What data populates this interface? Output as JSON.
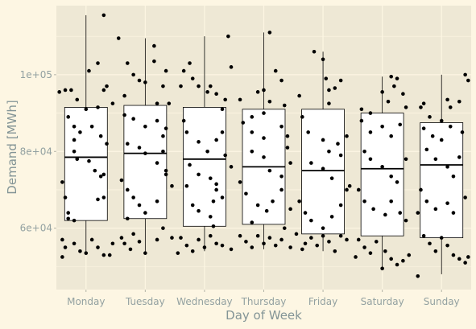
{
  "chart_data": {
    "type": "boxplot",
    "xlabel": "Day of Week",
    "ylabel": "Demand [MWh]",
    "ylim": [
      44000,
      118000
    ],
    "y_ticks": [
      60000,
      80000,
      100000
    ],
    "y_tick_labels": [
      "6e+04",
      "8e+04",
      "1e+05"
    ],
    "grid": true,
    "colors": {
      "background": "#fdf6e3",
      "panel": "#eee8d5",
      "grid": "#fdf6e3",
      "box_fill": "#ffffff",
      "box_stroke": "#000000",
      "point": "#000000",
      "tick_text": "#93a1a1",
      "title_text": "#839496"
    },
    "categories": [
      "Monday",
      "Tuesday",
      "Wednesday",
      "Thursday",
      "Friday",
      "Saturday",
      "Sunday"
    ],
    "boxes": [
      {
        "q1": 62000,
        "median": 78500,
        "q3": 91500,
        "whisker_low": 53000,
        "whisker_high": 115500
      },
      {
        "q1": 62500,
        "median": 79500,
        "q3": 92000,
        "whisker_low": 53500,
        "whisker_high": 109500
      },
      {
        "q1": 60500,
        "median": 78000,
        "q3": 91500,
        "whisker_low": 54000,
        "whisker_high": 110000
      },
      {
        "q1": 61000,
        "median": 76000,
        "q3": 91000,
        "whisker_low": 54500,
        "whisker_high": 111000
      },
      {
        "q1": 58500,
        "median": 75000,
        "q3": 91000,
        "whisker_low": 54000,
        "whisker_high": 106000
      },
      {
        "q1": 58000,
        "median": 75500,
        "q3": 90000,
        "whisker_low": 49500,
        "whisker_high": 99500
      },
      {
        "q1": 57500,
        "median": 76500,
        "q3": 87500,
        "whisker_low": 48000,
        "whisker_high": 100000
      }
    ],
    "points": [
      [
        [
          -0.45,
          95500
        ],
        [
          -0.35,
          96000
        ],
        [
          -0.25,
          96000
        ],
        [
          -0.15,
          93500
        ],
        [
          0.05,
          101000
        ],
        [
          0.2,
          103000
        ],
        [
          0.35,
          97000
        ],
        [
          0.3,
          96000
        ],
        [
          0.45,
          92500
        ],
        [
          0.3,
          115500
        ],
        [
          0.0,
          91000
        ],
        [
          0.2,
          91500
        ],
        [
          -0.3,
          89000
        ],
        [
          -0.2,
          86500
        ],
        [
          -0.1,
          85000
        ],
        [
          -0.2,
          83000
        ],
        [
          0.1,
          86500
        ],
        [
          0.25,
          84000
        ],
        [
          -0.2,
          80000
        ],
        [
          -0.15,
          78000
        ],
        [
          0.05,
          77500
        ],
        [
          0.15,
          75000
        ],
        [
          0.3,
          74000
        ],
        [
          0.35,
          82000
        ],
        [
          -0.4,
          72000
        ],
        [
          -0.35,
          68000
        ],
        [
          -0.3,
          64000
        ],
        [
          -0.3,
          62500
        ],
        [
          -0.2,
          62000
        ],
        [
          0.2,
          67500
        ],
        [
          0.3,
          68000
        ],
        [
          0.25,
          73500
        ],
        [
          -0.4,
          57000
        ],
        [
          -0.35,
          55000
        ],
        [
          -0.2,
          56000
        ],
        [
          -0.1,
          54000
        ],
        [
          0.0,
          53500
        ],
        [
          0.1,
          57000
        ],
        [
          0.2,
          55000
        ],
        [
          0.3,
          53000
        ],
        [
          0.45,
          56000
        ],
        [
          -0.4,
          52500
        ],
        [
          0.4,
          53000
        ]
      ],
      [
        [
          -0.45,
          109500
        ],
        [
          -0.3,
          103000
        ],
        [
          -0.2,
          100000
        ],
        [
          -0.1,
          98500
        ],
        [
          0.0,
          98000
        ],
        [
          0.15,
          103500
        ],
        [
          0.35,
          101000
        ],
        [
          0.3,
          97000
        ],
        [
          0.4,
          92500
        ],
        [
          0.2,
          92500
        ],
        [
          -0.35,
          94500
        ],
        [
          0.15,
          107500
        ],
        [
          -0.35,
          89500
        ],
        [
          -0.2,
          88500
        ],
        [
          0.0,
          86500
        ],
        [
          0.2,
          88000
        ],
        [
          0.3,
          84000
        ],
        [
          0.35,
          86000
        ],
        [
          -0.3,
          82000
        ],
        [
          -0.1,
          81000
        ],
        [
          0.0,
          79500
        ],
        [
          0.2,
          77000
        ],
        [
          0.35,
          75000
        ],
        [
          0.3,
          80000
        ],
        [
          -0.4,
          72500
        ],
        [
          -0.3,
          70000
        ],
        [
          -0.2,
          68000
        ],
        [
          -0.1,
          66000
        ],
        [
          0.0,
          64000
        ],
        [
          0.2,
          67000
        ],
        [
          0.45,
          71000
        ],
        [
          0.35,
          74000
        ],
        [
          -0.4,
          57500
        ],
        [
          -0.35,
          56000
        ],
        [
          -0.25,
          54500
        ],
        [
          -0.2,
          58500
        ],
        [
          -0.1,
          56500
        ],
        [
          0.0,
          53500
        ],
        [
          0.2,
          57000
        ],
        [
          0.3,
          60000
        ],
        [
          0.45,
          57500
        ],
        [
          -0.3,
          62500
        ]
      ],
      [
        [
          -0.35,
          101000
        ],
        [
          -0.25,
          103000
        ],
        [
          -0.2,
          99000
        ],
        [
          -0.1,
          97000
        ],
        [
          0.05,
          95500
        ],
        [
          0.2,
          95000
        ],
        [
          0.35,
          93500
        ],
        [
          0.4,
          110000
        ],
        [
          0.3,
          91000
        ],
        [
          -0.4,
          97000
        ],
        [
          0.1,
          97000
        ],
        [
          0.45,
          102000
        ],
        [
          -0.35,
          88000
        ],
        [
          -0.3,
          85000
        ],
        [
          -0.1,
          82500
        ],
        [
          0.05,
          80000
        ],
        [
          0.2,
          83000
        ],
        [
          0.3,
          85000
        ],
        [
          0.35,
          79000
        ],
        [
          -0.25,
          76500
        ],
        [
          -0.1,
          74000
        ],
        [
          0.1,
          73000
        ],
        [
          0.2,
          71500
        ],
        [
          0.45,
          76000
        ],
        [
          -0.3,
          71000
        ],
        [
          -0.2,
          66000
        ],
        [
          -0.1,
          64500
        ],
        [
          0.1,
          63000
        ],
        [
          0.15,
          67000
        ],
        [
          0.3,
          68000
        ],
        [
          0.2,
          70000
        ],
        [
          -0.4,
          57500
        ],
        [
          -0.3,
          55500
        ],
        [
          -0.2,
          54000
        ],
        [
          -0.1,
          57000
        ],
        [
          0.0,
          55000
        ],
        [
          0.1,
          58000
        ],
        [
          0.2,
          56000
        ],
        [
          0.3,
          55500
        ],
        [
          0.45,
          54500
        ],
        [
          -0.45,
          53500
        ],
        [
          0.15,
          60500
        ]
      ],
      [
        [
          -0.4,
          93500
        ],
        [
          -0.1,
          95500
        ],
        [
          0.0,
          96000
        ],
        [
          0.1,
          93000
        ],
        [
          0.2,
          101000
        ],
        [
          0.3,
          98500
        ],
        [
          0.35,
          92000
        ],
        [
          0.1,
          111000
        ],
        [
          -0.2,
          89000
        ],
        [
          0.0,
          90000
        ],
        [
          -0.35,
          87500
        ],
        [
          -0.2,
          85000
        ],
        [
          0.0,
          83500
        ],
        [
          0.3,
          86500
        ],
        [
          0.4,
          84000
        ],
        [
          -0.2,
          80000
        ],
        [
          0.0,
          78500
        ],
        [
          0.1,
          75000
        ],
        [
          0.3,
          73500
        ],
        [
          0.45,
          77000
        ],
        [
          0.4,
          81000
        ],
        [
          -0.4,
          72000
        ],
        [
          -0.3,
          69000
        ],
        [
          -0.1,
          66000
        ],
        [
          0.05,
          64500
        ],
        [
          0.15,
          67000
        ],
        [
          0.3,
          70000
        ],
        [
          0.45,
          65000
        ],
        [
          -0.4,
          58000
        ],
        [
          -0.3,
          56500
        ],
        [
          -0.2,
          55000
        ],
        [
          -0.1,
          58000
        ],
        [
          0.0,
          56000
        ],
        [
          0.1,
          57500
        ],
        [
          0.2,
          55500
        ],
        [
          0.3,
          57000
        ],
        [
          0.45,
          55000
        ],
        [
          0.35,
          60000
        ],
        [
          -0.2,
          61500
        ]
      ],
      [
        [
          -0.4,
          94500
        ],
        [
          -0.15,
          106000
        ],
        [
          0.0,
          104000
        ],
        [
          0.05,
          99000
        ],
        [
          0.1,
          96000
        ],
        [
          0.2,
          96500
        ],
        [
          0.3,
          98500
        ],
        [
          0.1,
          92500
        ],
        [
          -0.35,
          89000
        ],
        [
          -0.25,
          85000
        ],
        [
          0.0,
          83000
        ],
        [
          0.1,
          80000
        ],
        [
          0.25,
          82000
        ],
        [
          0.4,
          84000
        ],
        [
          -0.2,
          77000
        ],
        [
          0.0,
          75500
        ],
        [
          0.15,
          73000
        ],
        [
          0.45,
          71000
        ],
        [
          0.3,
          79000
        ],
        [
          -0.4,
          67000
        ],
        [
          -0.3,
          64000
        ],
        [
          -0.2,
          62000
        ],
        [
          0.0,
          60000
        ],
        [
          0.15,
          63000
        ],
        [
          0.3,
          66000
        ],
        [
          0.4,
          70000
        ],
        [
          -0.45,
          58500
        ],
        [
          -0.3,
          56000
        ],
        [
          -0.2,
          57500
        ],
        [
          -0.1,
          55500
        ],
        [
          0.0,
          58000
        ],
        [
          0.1,
          56500
        ],
        [
          0.2,
          54000
        ],
        [
          0.3,
          58000
        ],
        [
          0.4,
          57000
        ],
        [
          -0.35,
          54500
        ]
      ],
      [
        [
          -0.35,
          91000
        ],
        [
          -0.2,
          90000
        ],
        [
          0.0,
          95500
        ],
        [
          0.1,
          93000
        ],
        [
          0.2,
          97000
        ],
        [
          0.25,
          99000
        ],
        [
          0.35,
          95000
        ],
        [
          0.4,
          91500
        ],
        [
          0.15,
          99500
        ],
        [
          -0.35,
          88000
        ],
        [
          -0.2,
          85000
        ],
        [
          0.0,
          86500
        ],
        [
          0.15,
          84000
        ],
        [
          0.3,
          87000
        ],
        [
          -0.3,
          80000
        ],
        [
          -0.2,
          78000
        ],
        [
          0.0,
          76000
        ],
        [
          0.15,
          73500
        ],
        [
          0.25,
          72000
        ],
        [
          0.4,
          78000
        ],
        [
          -0.4,
          70000
        ],
        [
          -0.3,
          67000
        ],
        [
          -0.15,
          65000
        ],
        [
          0.05,
          63500
        ],
        [
          0.15,
          67000
        ],
        [
          0.3,
          64000
        ],
        [
          0.4,
          62000
        ],
        [
          -0.4,
          57000
        ],
        [
          -0.3,
          55000
        ],
        [
          -0.2,
          53500
        ],
        [
          -0.1,
          56500
        ],
        [
          0.05,
          54000
        ],
        [
          0.15,
          52000
        ],
        [
          0.25,
          50500
        ],
        [
          0.35,
          51500
        ],
        [
          0.45,
          53000
        ],
        [
          -0.45,
          52500
        ],
        [
          0.0,
          49500
        ]
      ],
      [
        [
          -0.35,
          91500
        ],
        [
          -0.2,
          89000
        ],
        [
          0.0,
          88000
        ],
        [
          0.15,
          91500
        ],
        [
          0.3,
          93000
        ],
        [
          0.4,
          100000
        ],
        [
          0.45,
          98500
        ],
        [
          0.1,
          93500
        ],
        [
          -0.3,
          92500
        ],
        [
          -0.3,
          86000
        ],
        [
          -0.15,
          84000
        ],
        [
          0.0,
          83000
        ],
        [
          0.15,
          86500
        ],
        [
          0.35,
          85000
        ],
        [
          -0.25,
          80500
        ],
        [
          -0.1,
          78000
        ],
        [
          0.1,
          76000
        ],
        [
          0.2,
          73500
        ],
        [
          0.3,
          78500
        ],
        [
          -0.35,
          70000
        ],
        [
          -0.25,
          67000
        ],
        [
          -0.1,
          65000
        ],
        [
          0.1,
          66500
        ],
        [
          0.2,
          64000
        ],
        [
          0.4,
          68000
        ],
        [
          -0.4,
          64000
        ],
        [
          -0.3,
          58000
        ],
        [
          -0.2,
          56000
        ],
        [
          -0.1,
          54000
        ],
        [
          0.0,
          57500
        ],
        [
          0.1,
          55500
        ],
        [
          0.2,
          53000
        ],
        [
          0.3,
          52000
        ],
        [
          0.4,
          51000
        ],
        [
          0.45,
          52500
        ],
        [
          -0.4,
          47500
        ]
      ]
    ]
  }
}
